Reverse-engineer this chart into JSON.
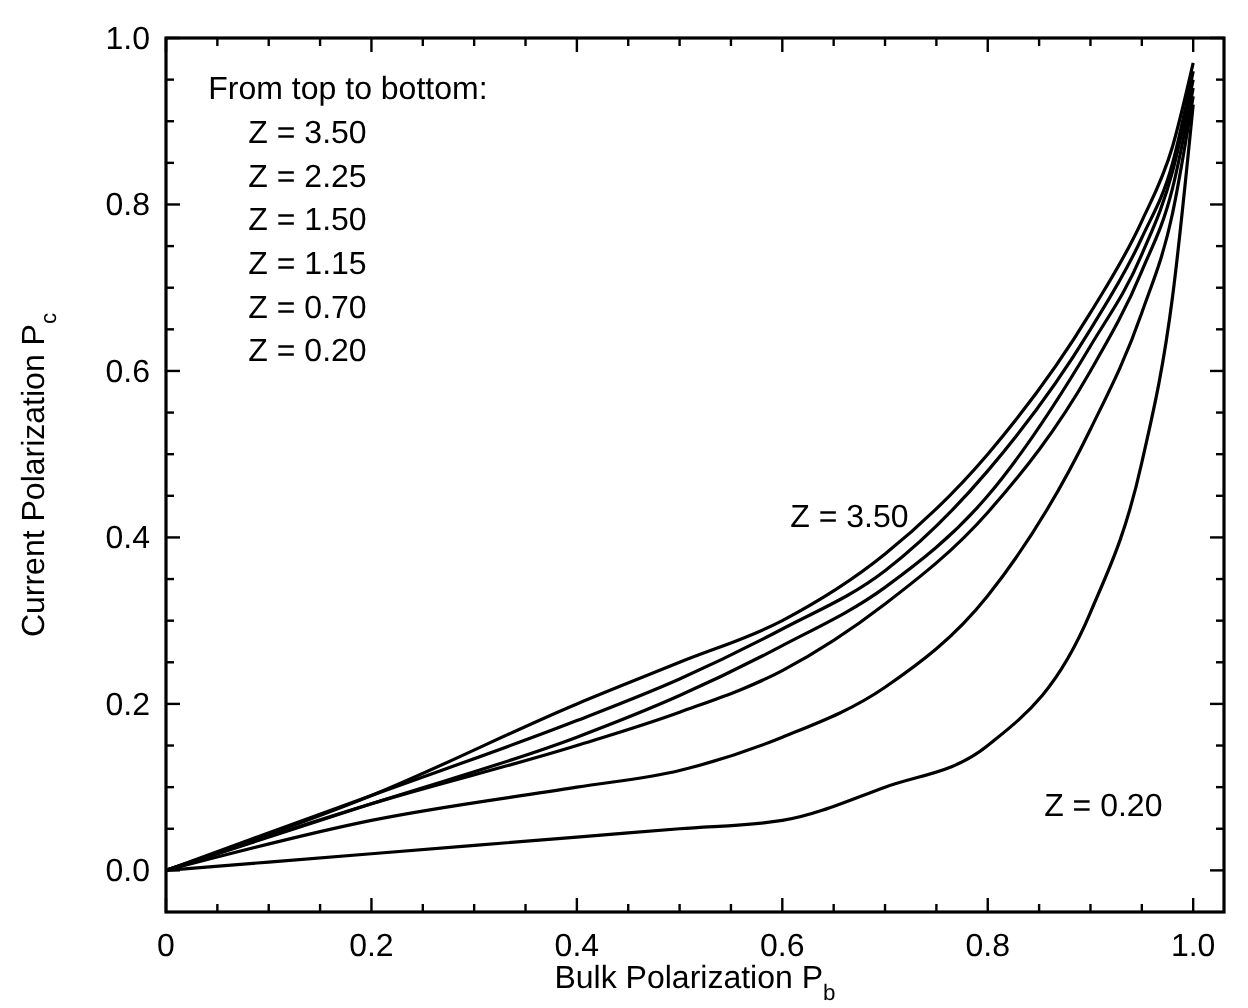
{
  "chart_data": {
    "type": "line",
    "xlabel": "Bulk Polarization P$_{b}$",
    "ylabel": "Current Polarization P$_{c}$",
    "line_style": "solid",
    "marker": "none",
    "grid": false,
    "x": [
      0,
      0.2,
      0.4,
      0.5,
      0.6,
      0.7,
      0.8,
      0.9,
      0.95,
      0.98,
      1.0
    ],
    "xlim": [
      0,
      1.03
    ],
    "ylim": [
      -0.05,
      1.0
    ],
    "xticks": [
      0,
      {
        "value": 0.05,
        "label": null
      },
      {
        "value": 0.1,
        "label": null
      },
      {
        "value": 0.15,
        "label": null
      },
      {
        "value": 0.2,
        "label": "0.2"
      },
      {
        "value": 0.25,
        "label": null
      },
      {
        "value": 0.3,
        "label": null
      },
      {
        "value": 0.35,
        "label": null
      },
      {
        "value": 0.4,
        "label": "0.4"
      },
      {
        "value": 0.45,
        "label": null
      },
      {
        "value": 0.5,
        "label": null
      },
      {
        "value": 0.55,
        "label": null
      },
      {
        "value": 0.6,
        "label": "0.6"
      },
      {
        "value": 0.65,
        "label": null
      },
      {
        "value": 0.7,
        "label": null
      },
      {
        "value": 0.75,
        "label": null
      },
      {
        "value": 0.8,
        "label": "0.8"
      },
      {
        "value": 0.85,
        "label": null
      },
      {
        "value": 0.9,
        "label": null
      },
      {
        "value": 0.95,
        "label": null
      },
      {
        "value": 1.0,
        "label": "1.0"
      }
    ],
    "yticks": [
      {
        "value": 0,
        "label": "0.0"
      },
      {
        "value": 0.05,
        "label": null
      },
      {
        "value": 0.1,
        "label": null
      },
      {
        "value": 0.15,
        "label": null
      },
      {
        "value": 0.2,
        "label": "0.2"
      },
      {
        "value": 0.25,
        "label": null
      },
      {
        "value": 0.3,
        "label": null
      },
      {
        "value": 0.35,
        "label": null
      },
      {
        "value": 0.4,
        "label": "0.4"
      },
      {
        "value": 0.45,
        "label": null
      },
      {
        "value": 0.5,
        "label": null
      },
      {
        "value": 0.55,
        "label": null
      },
      {
        "value": 0.6,
        "label": "0.6"
      },
      {
        "value": 0.65,
        "label": null
      },
      {
        "value": 0.7,
        "label": null
      },
      {
        "value": 0.75,
        "label": null
      },
      {
        "value": 0.8,
        "label": "0.8"
      },
      {
        "value": 0.85,
        "label": null
      },
      {
        "value": 0.9,
        "label": null
      },
      {
        "value": 0.95,
        "label": null
      },
      {
        "value": 1.0,
        "label": "1.0"
      }
    ],
    "series": [
      {
        "color": "#000000",
        "values": [
          0,
          0.09,
          0.2,
          0.25,
          0.3,
          0.38,
          0.5,
          0.67,
          0.78,
          0.87,
          0.97
        ]
      },
      {
        "color": "#000000",
        "values": [
          0,
          0.09,
          0.18,
          0.23,
          0.29,
          0.36,
          0.48,
          0.65,
          0.76,
          0.85,
          0.96
        ]
      },
      {
        "color": "#000000",
        "values": [
          0,
          0.08,
          0.16,
          0.21,
          0.27,
          0.34,
          0.45,
          0.63,
          0.74,
          0.84,
          0.95
        ]
      },
      {
        "color": "#000000",
        "values": [
          0,
          0.08,
          0.15,
          0.19,
          0.24,
          0.32,
          0.43,
          0.6,
          0.72,
          0.82,
          0.94
        ]
      },
      {
        "color": "#000000",
        "values": [
          0,
          0.06,
          0.1,
          0.12,
          0.16,
          0.22,
          0.33,
          0.53,
          0.67,
          0.79,
          0.93
        ]
      },
      {
        "color": "#000000",
        "values": [
          0,
          0.02,
          0.04,
          0.05,
          0.06,
          0.1,
          0.15,
          0.31,
          0.49,
          0.69,
          0.92
        ]
      }
    ],
    "annotations": [
      "From top to bottom:",
      "Z = 3.50",
      "Z = 2.25",
      "Z = 1.50",
      "Z = 1.15",
      "Z = 0.70",
      "Z = 0.20",
      "Z = 3.50",
      "Z = 0.20"
    ]
  }
}
